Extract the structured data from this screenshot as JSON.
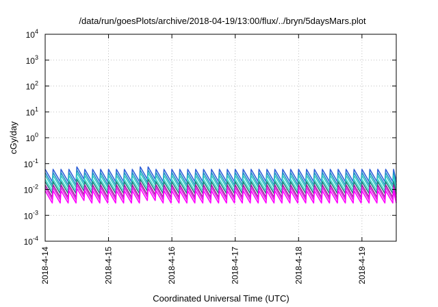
{
  "chart_data": {
    "type": "line",
    "title": "/data/run/goesPlots/archive/2018-04-19/13:00/flux/../bryn/5daysMars.plot",
    "xlabel": "Coordinated Universal Time (UTC)",
    "ylabel": "cGy/day",
    "y_scale": "log",
    "ylim": [
      0.0001,
      10000
    ],
    "y_ticks": [
      {
        "base": "10",
        "exp": "-4"
      },
      {
        "base": "10",
        "exp": "-3"
      },
      {
        "base": "10",
        "exp": "-2"
      },
      {
        "base": "10",
        "exp": "-1"
      },
      {
        "base": "10",
        "exp": "0"
      },
      {
        "base": "10",
        "exp": "1"
      },
      {
        "base": "10",
        "exp": "2"
      },
      {
        "base": "10",
        "exp": "3"
      },
      {
        "base": "10",
        "exp": "4"
      }
    ],
    "x_ticks": [
      "2018-4-14",
      "2018-4-15",
      "2018-4-16",
      "2018-4-17",
      "2018-4-18",
      "2018-4-19"
    ],
    "xlim": [
      "2018-04-14 00:00",
      "2018-04-19 13:00"
    ],
    "grid": true,
    "pattern": {
      "cycle_hours": 3,
      "peak_values": [
        0.06,
        0.045,
        0.035,
        0.025,
        0.02,
        0.015,
        0.012,
        0.009
      ],
      "trough_values": [
        0.02,
        0.015,
        0.012,
        0.009,
        0.007,
        0.005,
        0.004,
        0.003
      ]
    },
    "series": [
      {
        "color": "#3060d8"
      },
      {
        "color": "#2090c8"
      },
      {
        "color": "#30c8c0"
      },
      {
        "color": "#40e0d0"
      },
      {
        "color": "#208080"
      },
      {
        "color": "#a020a0"
      },
      {
        "color": "#e020e0"
      },
      {
        "color": "#ff00ff"
      }
    ]
  }
}
